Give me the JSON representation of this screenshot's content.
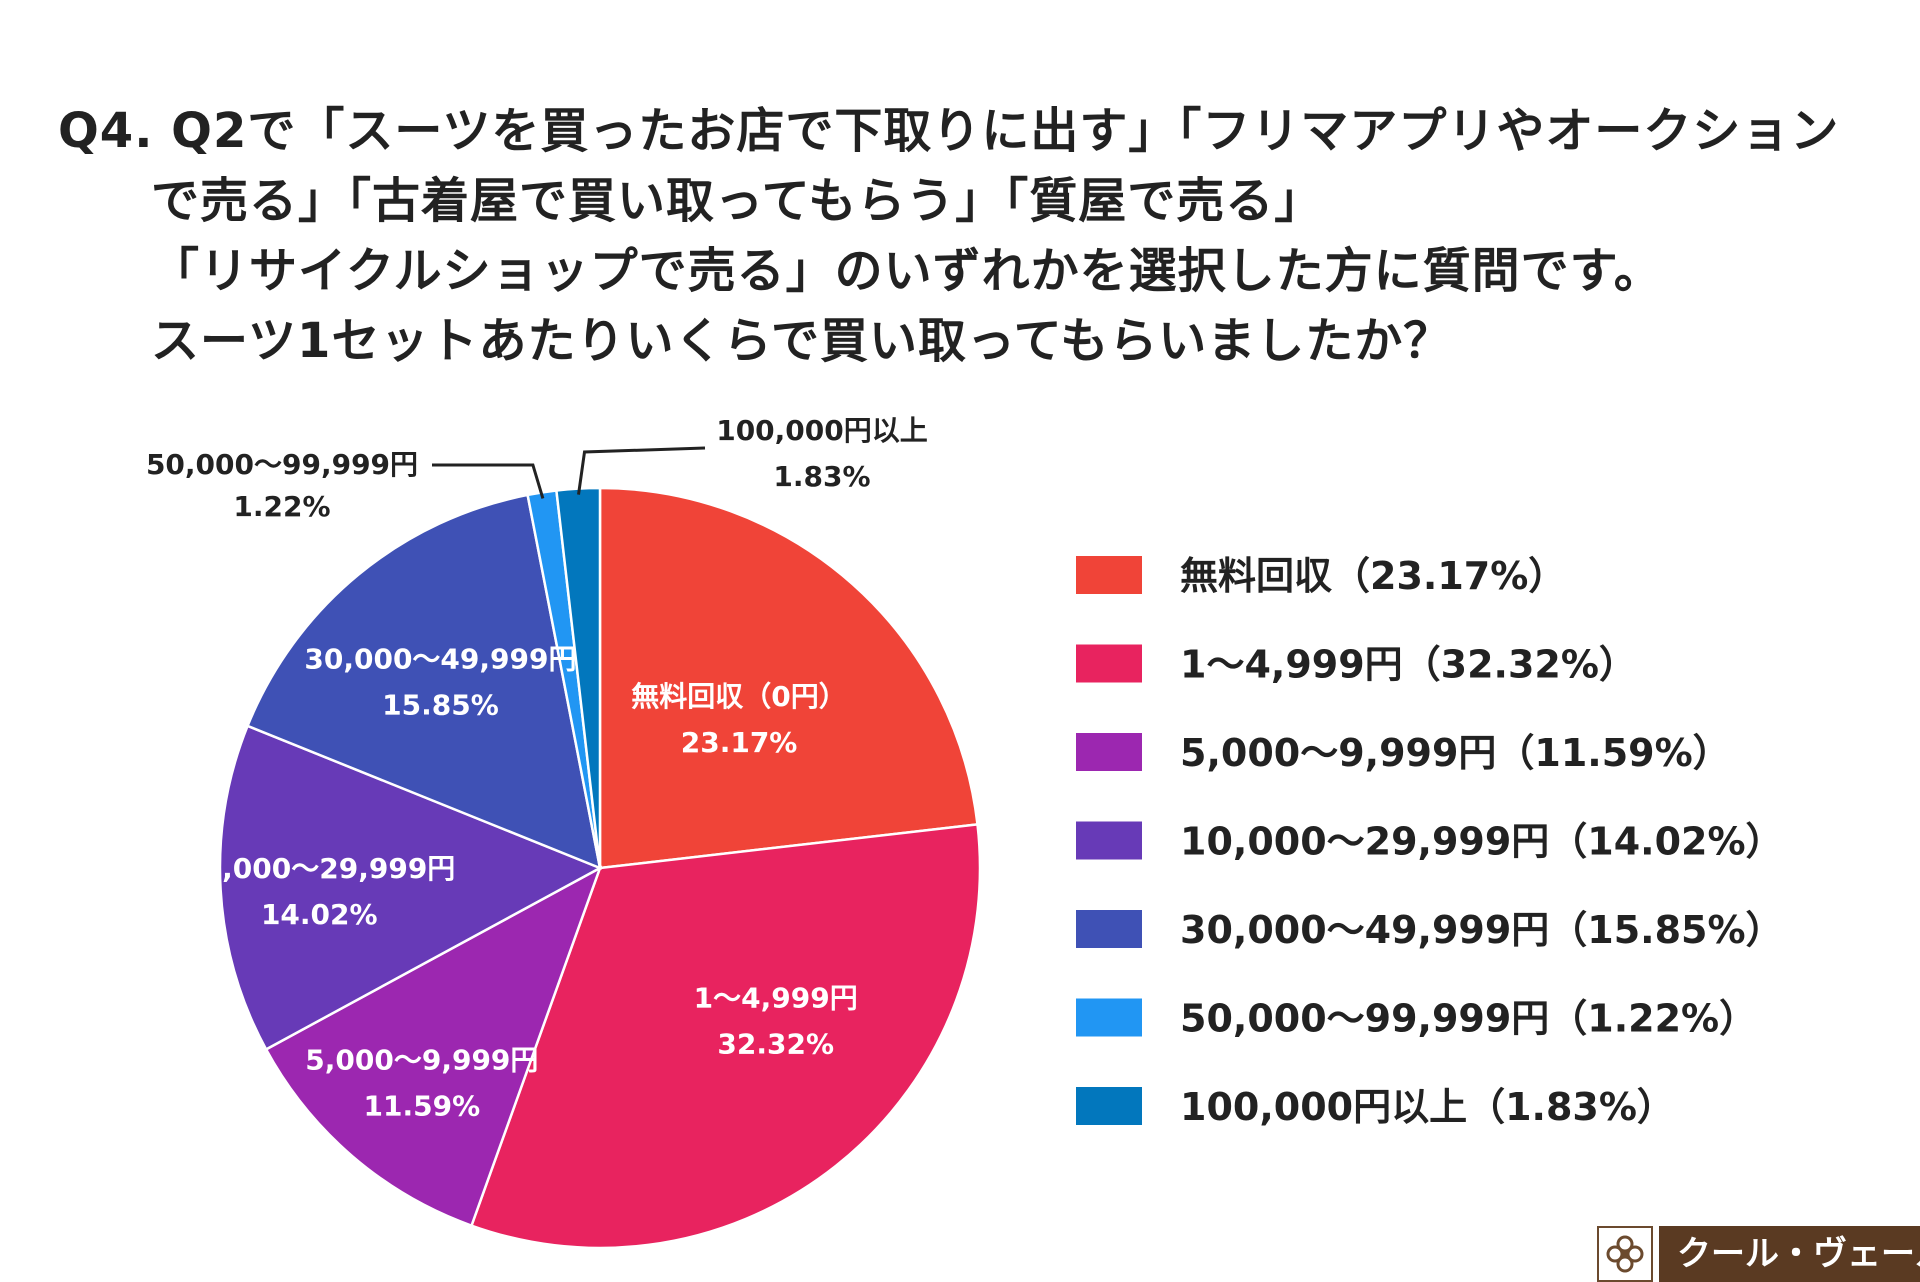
{
  "title": {
    "lines": [
      "Q4. Q2で「スーツを買ったお店で下取りに出す」「フリマアプリやオークション",
      "で売る」「古着屋で買い取ってもらう」「質屋で売る」",
      "「リサイクルショップで売る」のいずれかを選択した方に質問です。",
      "スーツ1セットあたりいくらで買い取ってもらいましたか？"
    ]
  },
  "chart_data": {
    "type": "pie",
    "title": "スーツ1セットあたりいくらで買い取ってもらいましたか？",
    "slices": [
      {
        "label": "無料回収（0円）",
        "legend": "無料回収（23.17%）",
        "value": 23.17,
        "value_text": "23.17%",
        "color": "#f04438"
      },
      {
        "label": "1〜4,999円",
        "legend": "1〜4,999円（32.32%）",
        "value": 32.32,
        "value_text": "32.32%",
        "color": "#e8235f"
      },
      {
        "label": "5,000〜9,999円",
        "legend": "5,000〜9,999円（11.59%）",
        "value": 11.59,
        "value_text": "11.59%",
        "color": "#9c27b0"
      },
      {
        "label": "10,000〜29,999円",
        "legend": "10,000〜29,999円（14.02%）",
        "value": 14.02,
        "value_text": "14.02%",
        "color": "#673ab7"
      },
      {
        "label": "30,000〜49,999円",
        "legend": "30,000〜49,999円（15.85%）",
        "value": 15.85,
        "value_text": "15.85%",
        "color": "#3f51b5"
      },
      {
        "label": "50,000〜99,999円",
        "legend": "50,000〜99,999円（1.22%）",
        "value": 1.22,
        "value_text": "1.22%",
        "color": "#2196f3"
      },
      {
        "label": "100,000円以上",
        "legend": "100,000円以上（1.83%）",
        "value": 1.83,
        "value_text": "1.83%",
        "color": "#0277bd"
      }
    ],
    "legend_position": "right"
  },
  "brand": {
    "name": "クール・ヴェール"
  }
}
